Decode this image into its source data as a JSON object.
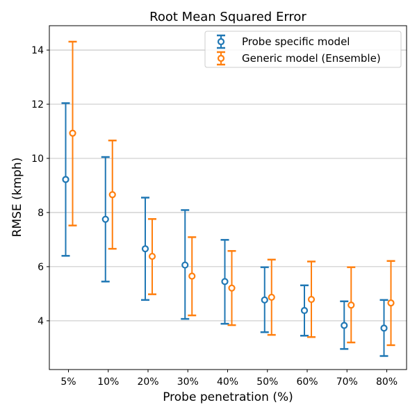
{
  "chart_data": {
    "type": "errorbar",
    "title": "Root Mean Squared Error",
    "xlabel": "Probe penetration (%)",
    "ylabel": "RMSE (kmph)",
    "categories": [
      "5%",
      "10%",
      "20%",
      "30%",
      "40%",
      "50%",
      "60%",
      "70%",
      "80%"
    ],
    "ylim": [
      2.2,
      14.9
    ],
    "yticks": [
      4,
      6,
      8,
      10,
      12,
      14
    ],
    "ytick_labels": [
      "4",
      "6",
      "8",
      "10",
      "12",
      "14"
    ],
    "grid": "y",
    "legend_position": "upper right",
    "series": [
      {
        "name": "Probe specific model",
        "color": "#1f77b4",
        "values": [
          9.22,
          7.75,
          6.66,
          6.06,
          5.45,
          4.77,
          4.38,
          3.83,
          3.73
        ],
        "lower": [
          6.4,
          5.45,
          4.77,
          4.07,
          3.89,
          3.58,
          3.45,
          2.96,
          2.7
        ],
        "upper": [
          12.04,
          10.05,
          8.55,
          8.09,
          6.99,
          5.98,
          5.31,
          4.72,
          4.77
        ]
      },
      {
        "name": "Generic model (Ensemble)",
        "color": "#ff7f0e",
        "values": [
          10.93,
          8.66,
          6.38,
          5.65,
          5.21,
          4.87,
          4.79,
          4.58,
          4.66
        ],
        "lower": [
          7.52,
          6.66,
          4.98,
          4.2,
          3.84,
          3.48,
          3.4,
          3.2,
          3.1
        ],
        "upper": [
          14.31,
          10.66,
          7.76,
          7.09,
          6.58,
          6.26,
          6.19,
          5.98,
          6.21
        ]
      }
    ]
  }
}
